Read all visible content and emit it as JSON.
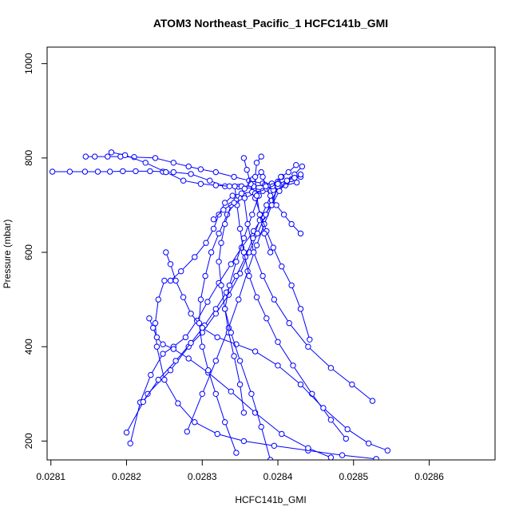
{
  "chart_data": {
    "type": "line",
    "title": "ATOM3 Northeast_Pacific_1 HCFC141b_GMI",
    "xlabel": "HCFC141b_GMI",
    "ylabel": "Pressure (mbar)",
    "xlim": [
      0.028095,
      0.028687
    ],
    "ylim": [
      1035,
      160
    ],
    "y_reversed": true,
    "x_ticks": [
      0.0281,
      0.0282,
      0.0283,
      0.0284,
      0.0285,
      0.0286
    ],
    "x_tick_labels": [
      "0.0281",
      "0.0282",
      "0.0283",
      "0.0284",
      "0.0285",
      "0.0286"
    ],
    "y_ticks": [
      200,
      400,
      600,
      800,
      1000
    ],
    "y_tick_labels": [
      "200",
      "400",
      "600",
      "800",
      "1000"
    ],
    "grid": false,
    "legend": "none",
    "color": "#0000ff",
    "marker": "open-circle",
    "series": [
      {
        "x": [
          0.028102,
          0.028125,
          0.028145,
          0.028162,
          0.028178,
          0.028195,
          0.028212,
          0.028231,
          0.028248,
          0.028262,
          0.028285,
          0.02831,
          0.02833,
          0.028348,
          0.028368,
          0.02839,
          0.02841,
          0.028425
        ],
        "y": [
          771,
          771,
          771,
          771,
          771,
          772,
          772,
          772,
          771,
          770,
          766,
          752,
          740,
          739,
          735,
          730,
          742,
          748
        ]
      },
      {
        "x": [
          0.028146,
          0.028158,
          0.028175,
          0.028192,
          0.02821,
          0.028238,
          0.028262,
          0.028282,
          0.028298,
          0.028318,
          0.028342,
          0.028362,
          0.02838,
          0.0284,
          0.028418,
          0.02843
        ],
        "y": [
          803,
          803,
          803,
          803,
          802,
          800,
          790,
          782,
          776,
          770,
          760,
          752,
          746,
          745,
          755,
          760
        ]
      },
      {
        "x": [
          0.02818,
          0.028198,
          0.028225,
          0.028252,
          0.028275,
          0.028298,
          0.028318,
          0.028336,
          0.028352,
          0.028368,
          0.028383,
          0.028392,
          0.0284
        ],
        "y": [
          812,
          806,
          790,
          770,
          752,
          745,
          742,
          740,
          740,
          740,
          743,
          746,
          750
        ]
      },
      {
        "x": [
          0.028205,
          0.028218,
          0.028232,
          0.028248,
          0.028262,
          0.028278,
          0.028293,
          0.028307,
          0.028322,
          0.028338,
          0.028352,
          0.028368,
          0.02838,
          0.028392,
          0.028402,
          0.028412,
          0.028422,
          0.028432
        ],
        "y": [
          195,
          282,
          340,
          385,
          400,
          420,
          455,
          495,
          535,
          575,
          610,
          645,
          675,
          700,
          730,
          750,
          765,
          782
        ]
      },
      {
        "x": [
          0.0282,
          0.028228,
          0.028258,
          0.028282,
          0.0283,
          0.028318,
          0.028335,
          0.02835,
          0.028362,
          0.028373,
          0.028384,
          0.028392,
          0.028402
        ],
        "y": [
          218,
          300,
          350,
          400,
          430,
          470,
          510,
          555,
          600,
          640,
          680,
          710,
          742
        ]
      },
      {
        "x": [
          0.028222,
          0.028242,
          0.028265,
          0.028285,
          0.028303,
          0.028318,
          0.028332,
          0.028345,
          0.028357,
          0.028367,
          0.028376,
          0.028385,
          0.028394,
          0.028405
        ],
        "y": [
          283,
          330,
          370,
          408,
          445,
          480,
          515,
          550,
          590,
          630,
          668,
          700,
          732,
          760
        ]
      },
      {
        "x": [
          0.02828,
          0.0283,
          0.028318,
          0.028335,
          0.028348,
          0.02836,
          0.028372,
          0.028382,
          0.028392,
          0.0284
        ],
        "y": [
          220,
          300,
          370,
          440,
          500,
          560,
          615,
          660,
          700,
          740
        ]
      },
      {
        "x": [
          0.028355,
          0.02835,
          0.028342,
          0.028335,
          0.02833,
          0.028336,
          0.028345,
          0.028355,
          0.028366,
          0.028375
        ],
        "y": [
          260,
          320,
          380,
          430,
          480,
          530,
          580,
          630,
          680,
          720
        ]
      },
      {
        "x": [
          0.028442,
          0.02843,
          0.028418,
          0.028405,
          0.028394,
          0.028385,
          0.028377,
          0.02837,
          0.028364,
          0.028359,
          0.028355
        ],
        "y": [
          415,
          480,
          530,
          570,
          610,
          645,
          680,
          715,
          745,
          775,
          800
        ]
      },
      {
        "x": [
          0.02849,
          0.02847,
          0.028445,
          0.02842,
          0.0284,
          0.028385,
          0.028372,
          0.028362,
          0.028355,
          0.02835,
          0.028346,
          0.028343
        ],
        "y": [
          205,
          245,
          300,
          360,
          410,
          460,
          505,
          550,
          600,
          650,
          700,
          740
        ]
      },
      {
        "x": [
          0.028525,
          0.028498,
          0.02847,
          0.02844,
          0.028415,
          0.028395,
          0.02838,
          0.028368,
          0.02836,
          0.028355
        ],
        "y": [
          285,
          320,
          355,
          400,
          450,
          500,
          550,
          600,
          660,
          720
        ]
      },
      {
        "x": [
          0.028545,
          0.02852,
          0.028492,
          0.02846,
          0.02843,
          0.0284,
          0.02837,
          0.028345,
          0.02832,
          0.0283,
          0.028285,
          0.028275,
          0.028265,
          0.028258,
          0.028252
        ],
        "y": [
          180,
          195,
          225,
          270,
          320,
          360,
          390,
          405,
          420,
          440,
          470,
          505,
          540,
          575,
          600
        ]
      },
      {
        "x": [
          0.02853,
          0.028485,
          0.02844,
          0.028395,
          0.028355,
          0.02832,
          0.02829,
          0.028268,
          0.02825,
          0.02824,
          0.028238,
          0.028242,
          0.02825
        ],
        "y": [
          162,
          170,
          180,
          190,
          200,
          215,
          240,
          280,
          330,
          400,
          450,
          500,
          540
        ]
      },
      {
        "x": [
          0.02847,
          0.02844,
          0.028405,
          0.02837,
          0.028338,
          0.028308,
          0.028282,
          0.028262,
          0.028248,
          0.02824,
          0.028235,
          0.02823
        ],
        "y": [
          165,
          185,
          215,
          260,
          305,
          345,
          375,
          395,
          405,
          420,
          440,
          460
        ]
      },
      {
        "x": [
          0.028345,
          0.02833,
          0.028318,
          0.028308,
          0.0283,
          0.028296,
          0.028298,
          0.028304,
          0.028312,
          0.028322,
          0.028333,
          0.028345,
          0.028356,
          0.028367,
          0.028378
        ],
        "y": [
          175,
          240,
          300,
          350,
          400,
          450,
          500,
          550,
          600,
          640,
          680,
          710,
          735,
          755,
          770
        ]
      },
      {
        "x": [
          0.02839,
          0.028378,
          0.028365,
          0.02835,
          0.028338,
          0.02833,
          0.028325,
          0.028322,
          0.028325,
          0.02833,
          0.028338
        ],
        "y": [
          160,
          230,
          300,
          370,
          430,
          480,
          530,
          580,
          620,
          660,
          700
        ]
      },
      {
        "x": [
          0.028258,
          0.028272,
          0.02829,
          0.028305,
          0.028315,
          0.028322,
          0.02833,
          0.02834,
          0.028352,
          0.028366,
          0.02838,
          0.028393,
          0.028404,
          0.028414,
          0.028424
        ],
        "y": [
          540,
          560,
          590,
          620,
          650,
          680,
          705,
          720,
          725,
          728,
          730,
          740,
          760,
          770,
          785
        ]
      },
      {
        "x": [
          0.028315,
          0.028328,
          0.028342,
          0.028356,
          0.02837,
          0.028385,
          0.0284,
          0.028412,
          0.028422,
          0.02843
        ],
        "y": [
          670,
          690,
          705,
          715,
          725,
          735,
          745,
          752,
          758,
          765
        ]
      },
      {
        "x": [
          0.02843,
          0.028418,
          0.028408,
          0.028398,
          0.02839,
          0.028384,
          0.02838
        ],
        "y": [
          640,
          660,
          680,
          700,
          720,
          740,
          760
        ]
      },
      {
        "x": [
          0.02839,
          0.028382,
          0.028376,
          0.028372,
          0.02837,
          0.028372,
          0.028378
        ],
        "y": [
          600,
          640,
          680,
          720,
          760,
          790,
          803
        ]
      }
    ]
  }
}
